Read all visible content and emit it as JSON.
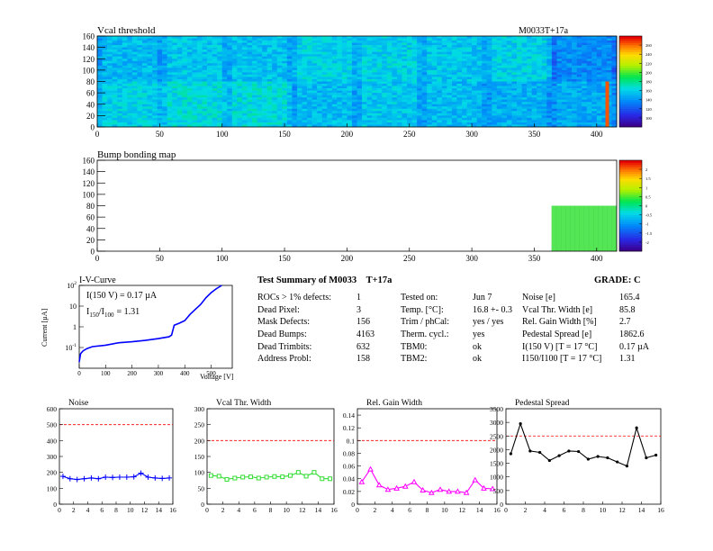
{
  "vcal_map": {
    "title": "Vcal threshold",
    "module": "M0033T+17a",
    "chart_data": {
      "type": "heatmap",
      "title": "Vcal threshold",
      "xlim": [
        0,
        416
      ],
      "ylim": [
        0,
        160
      ],
      "x_ticks": [
        "0",
        "50",
        "100",
        "150",
        "200",
        "250",
        "300",
        "350",
        "400"
      ],
      "y_ticks": [
        "0",
        "20",
        "40",
        "60",
        "80",
        "100",
        "120",
        "140",
        "160"
      ],
      "palette_ticks": [
        "100",
        "120",
        "140",
        "160",
        "180",
        "200",
        "220",
        "240",
        "260"
      ],
      "roc_grid": {
        "cols": 8,
        "rows": 2
      },
      "note_hot_column_x": 407
    }
  },
  "bump_map": {
    "title": "Bump bonding map",
    "chart_data": {
      "type": "heatmap",
      "title": "Bump bonding map",
      "xlim": [
        0,
        416
      ],
      "ylim": [
        0,
        160
      ],
      "x_ticks": [
        "0",
        "50",
        "100",
        "150",
        "200",
        "250",
        "300",
        "350",
        "400"
      ],
      "y_ticks": [
        "0",
        "20",
        "40",
        "60",
        "80",
        "100",
        "120",
        "140",
        "160"
      ],
      "palette_ticks": [
        "-2",
        "-1.5",
        "-1",
        "-0.5",
        "0",
        "0.5",
        "1",
        "1.5",
        "2"
      ],
      "filled_region": {
        "x": [
          364,
          416
        ],
        "y": [
          0,
          80
        ]
      }
    }
  },
  "iv_curve": {
    "title": "I-V-Curve",
    "xlabel": "Voltage [V]",
    "ylabel": "Current [µA]",
    "ann1": "I(150 V) = 0.17 µA",
    "ann2_main": "I",
    "ann2_sub1": "150",
    "ann2_sep": "/I",
    "ann2_sub2": "100",
    "ann2_val": "=  1.31",
    "chart_data": {
      "type": "line",
      "x": [
        0,
        5,
        15,
        30,
        50,
        100,
        150,
        200,
        250,
        300,
        340,
        350,
        360,
        380,
        400,
        420,
        440,
        460,
        480,
        500,
        520,
        540
      ],
      "y": [
        0.02,
        0.05,
        0.07,
        0.09,
        0.11,
        0.13,
        0.17,
        0.19,
        0.22,
        0.27,
        0.33,
        0.4,
        1.2,
        1.5,
        2.0,
        4.0,
        7.0,
        12.0,
        25.0,
        45.0,
        70.0,
        100.0
      ],
      "xlim": [
        0,
        580
      ],
      "ylim_log": [
        0.01,
        100
      ],
      "x_ticks": [
        "0",
        "100",
        "200",
        "300",
        "400",
        "500"
      ],
      "y_ticks": [
        "10^{-1}",
        "1",
        "10",
        "10^{2}"
      ],
      "color": "#0000ff"
    }
  },
  "summary": {
    "title_prefix": "Test Summary of M0033",
    "title_mod": "T+17a",
    "grade": "GRADE:  C",
    "col1_labels": [
      "ROCs > 1% defects:",
      "Dead Pixel:",
      "Mask Defects:",
      "Dead Bumps:",
      "Dead Trimbits:",
      "Address Probl:"
    ],
    "col1_values": [
      "1",
      "3",
      "156",
      "4163",
      "632",
      "158"
    ],
    "col2_labels": [
      "Tested on:",
      "Temp. [°C]:",
      "Trim / phCal:",
      "Therm. cycl.:",
      "TBM0:",
      "TBM2:"
    ],
    "col2_values": [
      "Jun 7",
      "16.8 +- 0.3",
      "yes / yes",
      "yes",
      "ok",
      "ok"
    ],
    "col3_labels": [
      "Noise [e]",
      "Vcal Thr. Width [e]",
      "Rel. Gain Width [%]",
      "Pedestal Spread [e]",
      "I(150 V) [T = 17 °C]",
      "I150/I100   [T = 17 °C]"
    ],
    "col3_values": [
      "165.4",
      "85.8",
      "2.7",
      "1862.6",
      "0.17 µA",
      "1.31"
    ]
  },
  "small_plots": [
    {
      "title": "Noise",
      "color": "#0000ff",
      "marker": "cross",
      "chart_data": {
        "type": "line",
        "title": "Noise",
        "x": [
          0,
          1,
          2,
          3,
          4,
          5,
          6,
          7,
          8,
          9,
          10,
          11,
          12,
          13,
          14,
          15
        ],
        "y": [
          175,
          160,
          155,
          160,
          165,
          160,
          170,
          168,
          170,
          170,
          172,
          195,
          170,
          165,
          162,
          165
        ],
        "xlim": [
          0,
          16
        ],
        "ylim": [
          0,
          600
        ],
        "threshold": 500,
        "x_ticks": [
          "0",
          "2",
          "4",
          "6",
          "8",
          "10",
          "12",
          "14",
          "16"
        ],
        "y_ticks": [
          "0",
          "100",
          "200",
          "300",
          "400",
          "500",
          "600"
        ]
      }
    },
    {
      "title": "Vcal Thr. Width",
      "color": "#33dd33",
      "marker": "square",
      "chart_data": {
        "type": "line",
        "title": "Vcal Thr. Width",
        "x": [
          0,
          1,
          2,
          3,
          4,
          5,
          6,
          7,
          8,
          9,
          10,
          11,
          12,
          13,
          14,
          15
        ],
        "y": [
          90,
          88,
          78,
          82,
          85,
          86,
          82,
          85,
          87,
          86,
          90,
          100,
          88,
          100,
          80,
          80
        ],
        "xlim": [
          0,
          16
        ],
        "ylim": [
          0,
          300
        ],
        "threshold": 200,
        "x_ticks": [
          "0",
          "2",
          "4",
          "6",
          "8",
          "10",
          "12",
          "14",
          "16"
        ],
        "y_ticks": [
          "0",
          "50",
          "100",
          "150",
          "200",
          "250",
          "300"
        ]
      }
    },
    {
      "title": "Rel. Gain Width",
      "color": "#ff00ff",
      "marker": "triangle",
      "chart_data": {
        "type": "line",
        "title": "Rel. Gain Width",
        "x": [
          0,
          1,
          2,
          3,
          4,
          5,
          6,
          7,
          8,
          9,
          10,
          11,
          12,
          13,
          14,
          15
        ],
        "y": [
          0.035,
          0.055,
          0.03,
          0.023,
          0.025,
          0.028,
          0.035,
          0.022,
          0.018,
          0.023,
          0.02,
          0.02,
          0.018,
          0.038,
          0.025,
          0.024
        ],
        "xlim": [
          0,
          16
        ],
        "ylim": [
          0,
          0.15
        ],
        "threshold": 0.1,
        "x_ticks": [
          "0",
          "2",
          "4",
          "6",
          "8",
          "10",
          "12",
          "14",
          "16"
        ],
        "y_ticks": [
          "0",
          "0.02",
          "0.04",
          "0.06",
          "0.08",
          "0.1",
          "0.12",
          "0.14"
        ]
      }
    },
    {
      "title": "Pedestal Spread",
      "color": "#000000",
      "marker": "circle",
      "chart_data": {
        "type": "line",
        "title": "Pedestal Spread",
        "x": [
          0,
          1,
          2,
          3,
          4,
          5,
          6,
          7,
          8,
          9,
          10,
          11,
          12,
          13,
          14,
          15
        ],
        "y": [
          1850,
          2950,
          1950,
          1900,
          1600,
          1780,
          1950,
          1930,
          1650,
          1750,
          1700,
          1550,
          1400,
          2800,
          1700,
          1800
        ],
        "xlim": [
          0,
          16
        ],
        "ylim": [
          0,
          3500
        ],
        "threshold": 2500,
        "x_ticks": [
          "0",
          "2",
          "4",
          "6",
          "8",
          "10",
          "12",
          "14",
          "16"
        ],
        "y_ticks": [
          "0",
          "500",
          "1000",
          "1500",
          "2000",
          "2500",
          "3000",
          "3500"
        ]
      }
    }
  ]
}
